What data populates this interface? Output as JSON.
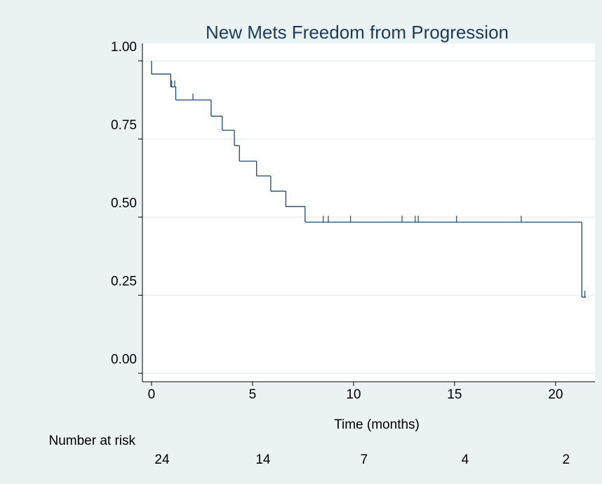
{
  "chart_data": {
    "type": "step",
    "title": "New Mets Freedom from Progression",
    "x_label": "Time (months)",
    "x": [
      0,
      0,
      0.95,
      1.2,
      2.95,
      3.5,
      4.1,
      4.35,
      5.2,
      5.9,
      6.65,
      7.6,
      21.3
    ],
    "values": [
      1,
      0.958,
      0.917,
      0.875,
      0.823,
      0.778,
      0.729,
      0.679,
      0.632,
      0.583,
      0.534,
      0.484,
      0.244
    ],
    "end_x": 21.5,
    "censor_x": [
      1.0,
      1.15,
      2.05,
      8.5,
      8.75,
      9.85,
      12.4,
      13.05,
      13.2,
      15.1,
      18.3,
      21.45
    ],
    "censor_values": [
      0.917,
      0.917,
      0.875,
      0.484,
      0.484,
      0.484,
      0.484,
      0.484,
      0.484,
      0.484,
      0.484,
      0.244
    ],
    "color": "#1a476f",
    "xlim": [
      -0.45,
      21.95
    ],
    "xticks": [
      0,
      5,
      10,
      15,
      20
    ],
    "ylim": [
      -0.027,
      1.056
    ],
    "yticks": [
      {
        "value": 0,
        "label": "0.00"
      },
      {
        "value": 0.25,
        "label": "0.25"
      },
      {
        "value": 0.5,
        "label": "0.50"
      },
      {
        "value": 0.75,
        "label": "0.75"
      },
      {
        "value": 1,
        "label": "1.00"
      }
    ],
    "grid": true,
    "risk_table": {
      "label": "Number at risk",
      "counts": [
        24,
        14,
        7,
        4,
        2
      ]
    }
  }
}
